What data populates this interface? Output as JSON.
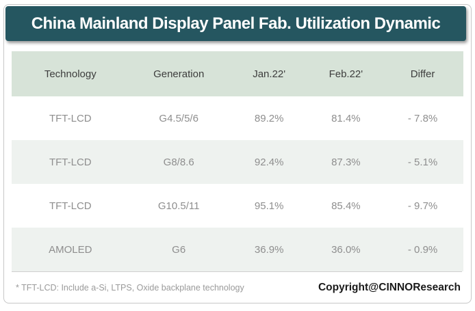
{
  "title": "China Mainland Display Panel Fab. Utilization Dynamic",
  "colors": {
    "title_bg": "#255660",
    "header_row_bg": "#d7e3d8",
    "alt_row_bg": "#eef2ef",
    "header_text": "#3d3d3d",
    "body_text": "#8e8e8e",
    "card_border": "#c6c6c6"
  },
  "chart_data": {
    "type": "table",
    "title": "China Mainland Display Panel Fab. Utilization Dynamic",
    "columns": [
      "Technology",
      "Generation",
      "Jan.22'",
      "Feb.22'",
      "Differ"
    ],
    "rows": [
      [
        "TFT-LCD",
        "G4.5/5/6",
        "89.2%",
        "81.4%",
        "- 7.8%"
      ],
      [
        "TFT-LCD",
        "G8/8.6",
        "92.4%",
        "87.3%",
        "- 5.1%"
      ],
      [
        "TFT-LCD",
        "G10.5/11",
        "95.1%",
        "85.4%",
        "- 9.7%"
      ],
      [
        "AMOLED",
        "G6",
        "36.9%",
        "36.0%",
        "- 0.9%"
      ]
    ],
    "column_widths_pct": [
      26,
      22,
      18,
      16,
      18
    ],
    "utilization_values": {
      "jan_22": [
        89.2,
        92.4,
        95.1,
        36.9
      ],
      "feb_22": [
        81.4,
        87.3,
        85.4,
        36.0
      ],
      "differ": [
        -7.8,
        -5.1,
        -9.7,
        -0.9
      ]
    }
  },
  "footer": {
    "note": "* TFT-LCD: Include a-Si, LTPS, Oxide backplane technology",
    "copyright": "Copyright@CINNOResearch"
  }
}
